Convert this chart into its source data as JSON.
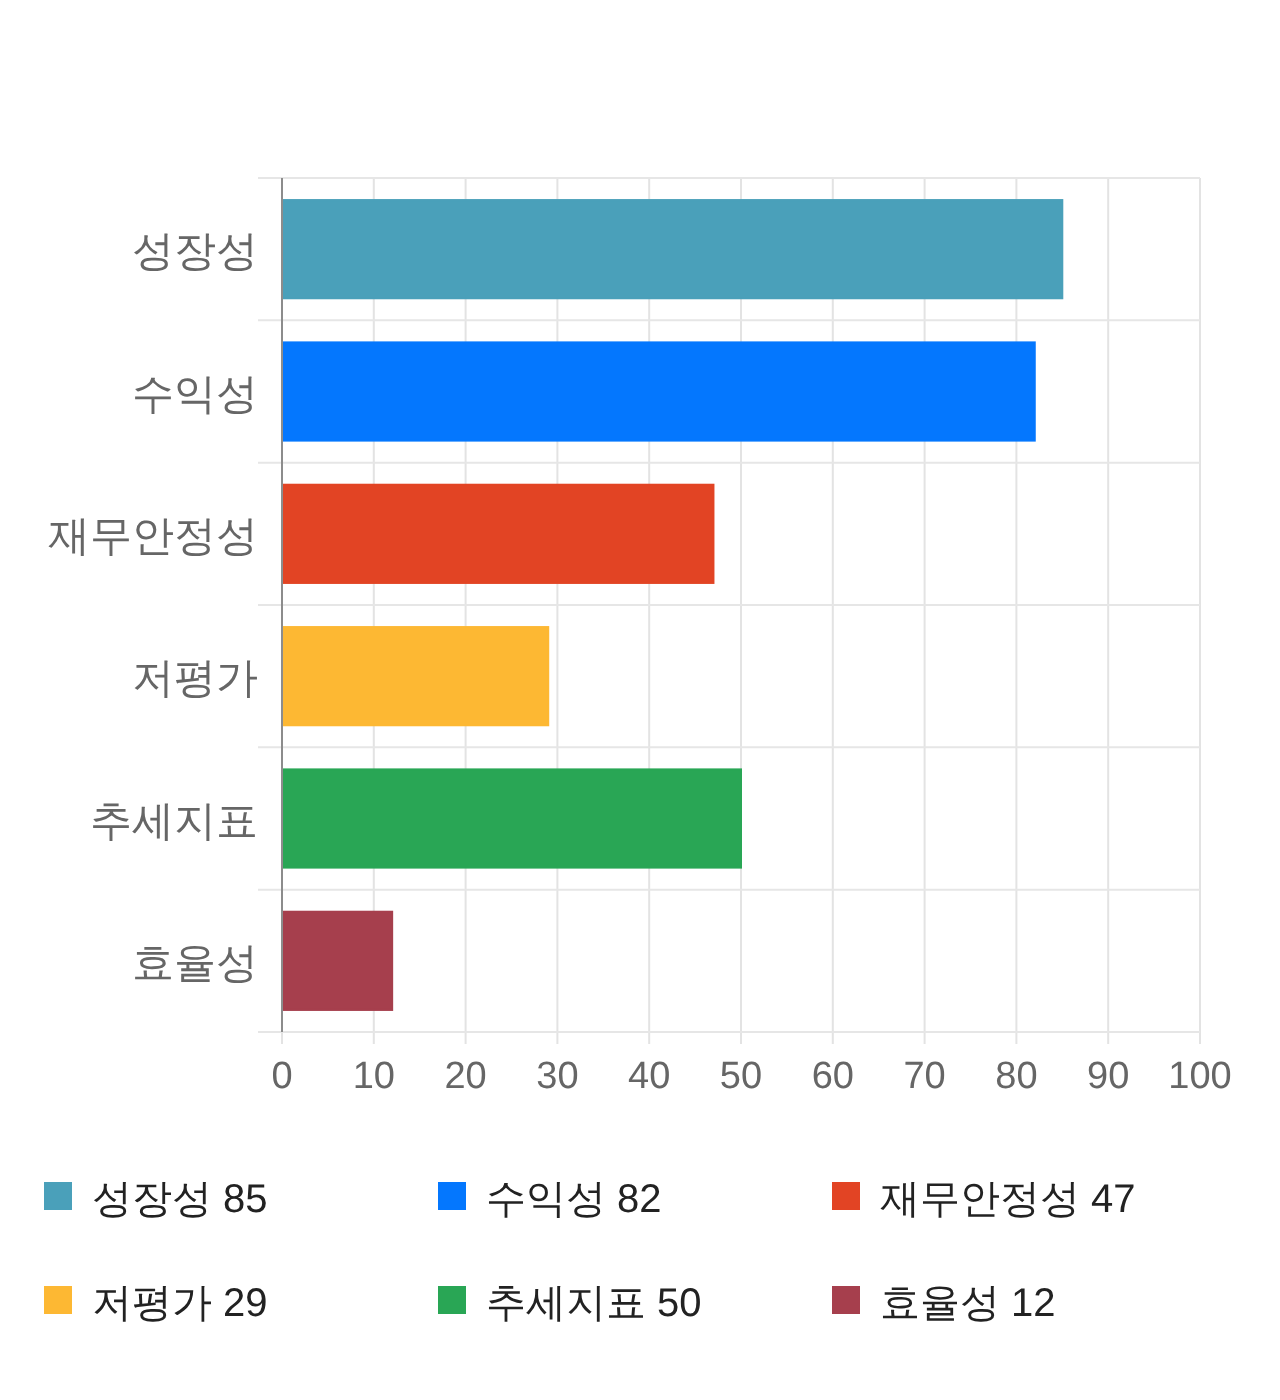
{
  "chart_data": {
    "type": "bar",
    "orientation": "horizontal",
    "stacked": true,
    "categories": [
      "성장성",
      "수익성",
      "재무안정성",
      "저평가",
      "추세지표",
      "효율성"
    ],
    "series": [
      {
        "name": "성장성 85",
        "color": "#4aa0ba",
        "values": [
          85,
          null,
          null,
          null,
          null,
          null
        ]
      },
      {
        "name": "수익성 82",
        "color": "#0477fe",
        "values": [
          null,
          82,
          null,
          null,
          null,
          null
        ]
      },
      {
        "name": "재무안정성 47",
        "color": "#e24424",
        "values": [
          null,
          null,
          47,
          null,
          null,
          null
        ]
      },
      {
        "name": "저평가 29",
        "color": "#fdb833",
        "values": [
          null,
          null,
          null,
          29,
          null,
          null
        ]
      },
      {
        "name": "추세지표 50",
        "color": "#29a655",
        "values": [
          null,
          null,
          null,
          null,
          50,
          null
        ]
      },
      {
        "name": "효율성 12",
        "color": "#a63f4d",
        "values": [
          null,
          null,
          null,
          null,
          null,
          12
        ]
      }
    ],
    "xlim": [
      0,
      100
    ],
    "xticks": [
      0,
      10,
      20,
      30,
      40,
      50,
      60,
      70,
      80,
      90,
      100
    ],
    "grid": true,
    "legend": "bottom"
  }
}
